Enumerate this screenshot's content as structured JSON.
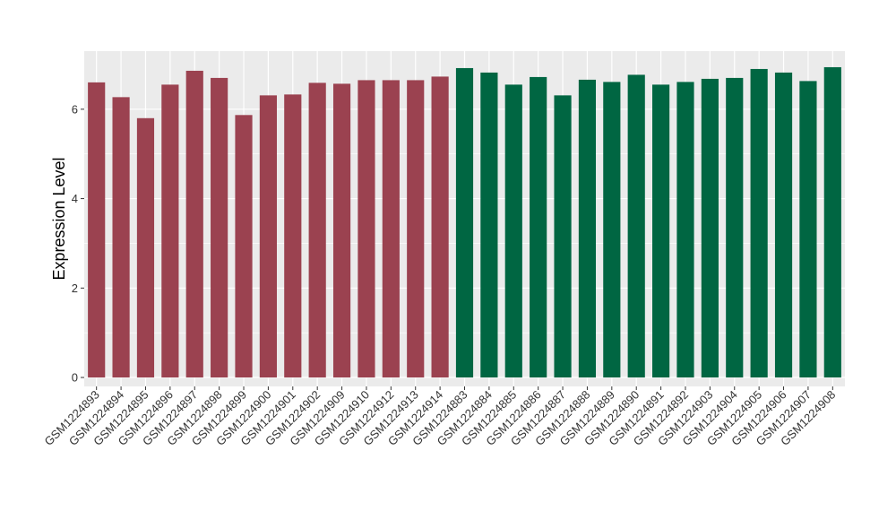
{
  "chart_data": {
    "type": "bar",
    "ylabel": "Expression Level",
    "xlabel": "",
    "ylim": [
      -0.2,
      7.3
    ],
    "yticks": [
      0,
      2,
      4,
      6
    ],
    "grid": true,
    "background": "#EBEBEB",
    "group_colors": [
      "#9B4250",
      "#006642"
    ],
    "categories": [
      "GSM1224893",
      "GSM1224894",
      "GSM1224895",
      "GSM1224896",
      "GSM1224897",
      "GSM1224898",
      "GSM1224899",
      "GSM1224900",
      "GSM1224901",
      "GSM1224902",
      "GSM1224909",
      "GSM1224910",
      "GSM1224912",
      "GSM1224913",
      "GSM1224914",
      "GSM1224883",
      "GSM1224884",
      "GSM1224885",
      "GSM1224886",
      "GSM1224887",
      "GSM1224888",
      "GSM1224889",
      "GSM1224890",
      "GSM1224891",
      "GSM1224892",
      "GSM1224903",
      "GSM1224904",
      "GSM1224905",
      "GSM1224906",
      "GSM1224907",
      "GSM1224908"
    ],
    "values": [
      6.6,
      6.27,
      5.8,
      6.55,
      6.86,
      6.7,
      5.87,
      6.31,
      6.33,
      6.59,
      6.57,
      6.65,
      6.65,
      6.65,
      6.73,
      6.92,
      6.82,
      6.55,
      6.72,
      6.31,
      6.66,
      6.61,
      6.77,
      6.55,
      6.61,
      6.68,
      6.7,
      6.9,
      6.82,
      6.63,
      6.94
    ],
    "groups": [
      0,
      0,
      0,
      0,
      0,
      0,
      0,
      0,
      0,
      0,
      0,
      0,
      0,
      0,
      0,
      1,
      1,
      1,
      1,
      1,
      1,
      1,
      1,
      1,
      1,
      1,
      1,
      1,
      1,
      1,
      1
    ]
  }
}
